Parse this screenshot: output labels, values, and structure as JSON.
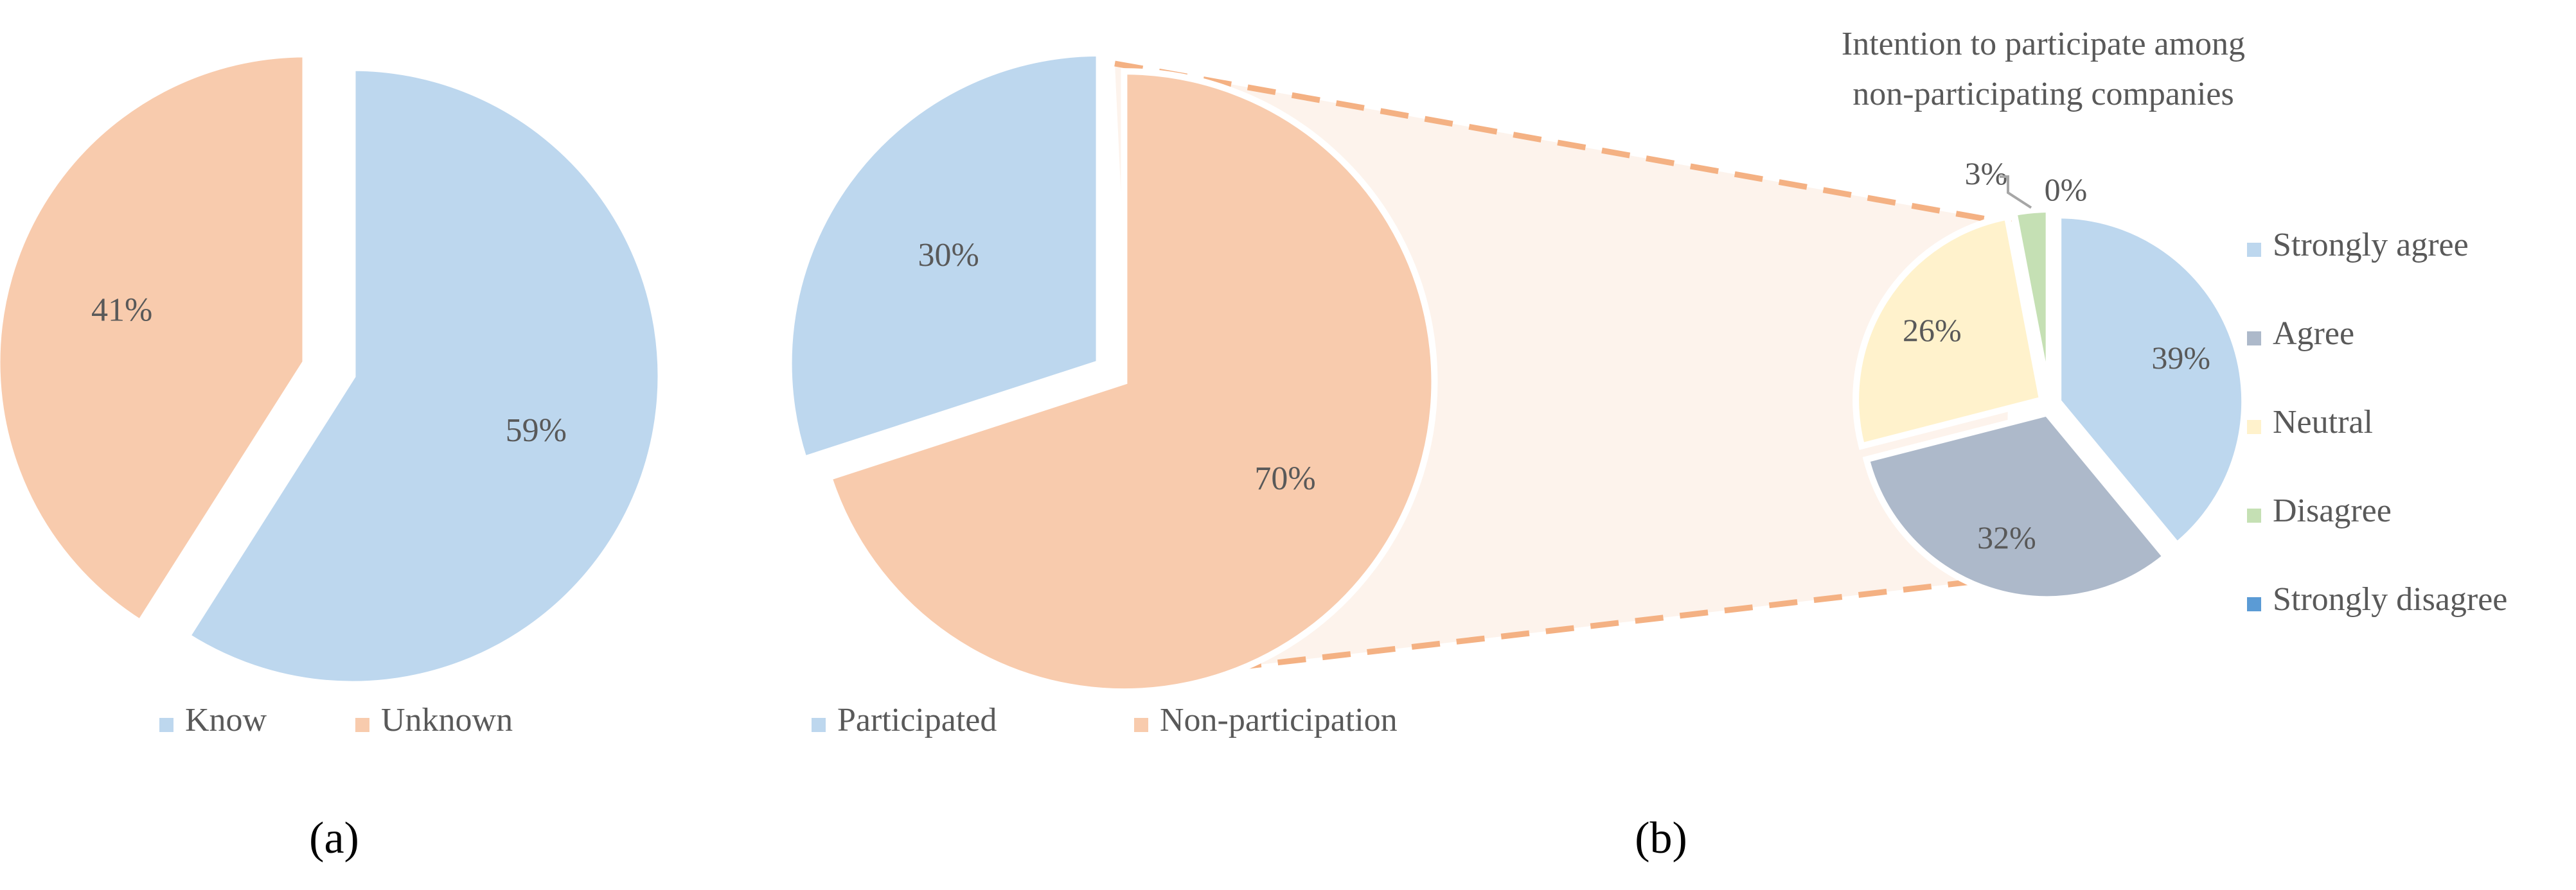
{
  "chart_data": [
    {
      "type": "pie",
      "panel": "(a)",
      "categories": [
        "Know",
        "Unknown"
      ],
      "values": [
        59,
        41
      ],
      "labels": [
        "59%",
        "41%"
      ],
      "colors": [
        "#bdd7ee",
        "#f8cbad"
      ],
      "exploded": true,
      "legend": [
        "Know",
        "Unknown"
      ],
      "legend_position": "bottom"
    },
    {
      "type": "pie",
      "panel": "(b)",
      "categories": [
        "Participated",
        "Non-participation"
      ],
      "values": [
        30,
        70
      ],
      "labels": [
        "30%",
        "70%"
      ],
      "colors": [
        "#bdd7ee",
        "#f8cbad"
      ],
      "exploded": true,
      "legend": [
        "Participated",
        "Non-participation"
      ],
      "legend_position": "bottom"
    },
    {
      "type": "pie",
      "panel": "(b)",
      "title_lines": [
        "Intention to participate among",
        "non-participating  companies"
      ],
      "categories": [
        "Strongly agree",
        "Agree",
        "Neutral",
        "Disagree",
        "Strongly disagree"
      ],
      "values": [
        39,
        32,
        26,
        3,
        0
      ],
      "labels": [
        "39%",
        "32%",
        "26%",
        "3%",
        "0%"
      ],
      "colors": [
        "#bdd7ee",
        "#adb9ca",
        "#fff2cc",
        "#c5e0b4",
        "#5b9bd5"
      ],
      "exploded": true,
      "legend_position": "right"
    }
  ],
  "subcaptions": [
    "(a)",
    "(b)"
  ],
  "colors": {
    "text": "#595959",
    "connector": "#f4b183",
    "connector_fill": "#fdf3ec"
  }
}
